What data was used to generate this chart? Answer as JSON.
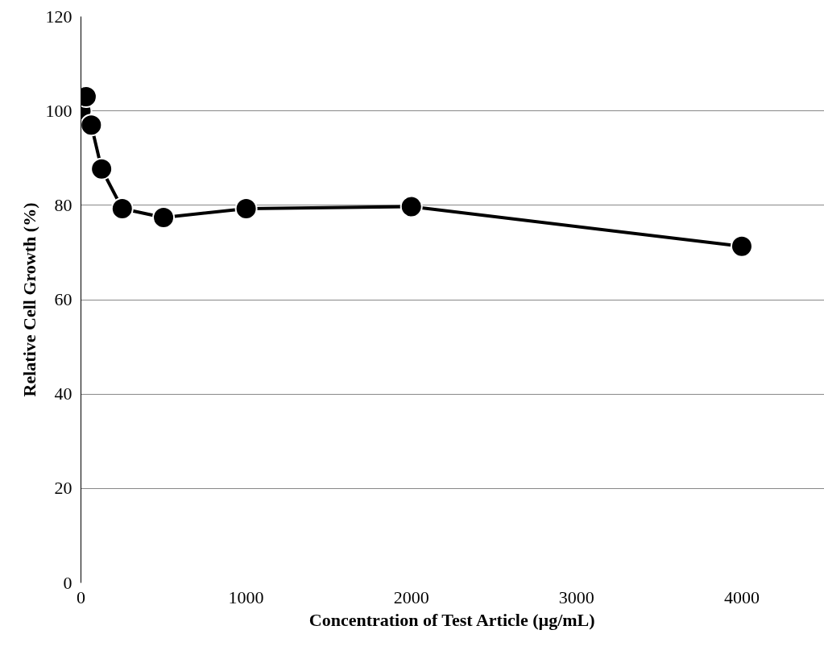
{
  "chart_data": {
    "type": "line",
    "xlabel": "Concentration of Test Article (µg/mL)",
    "ylabel": "Relative Cell Growth (%)",
    "x": [
      0,
      31.25,
      62.5,
      125,
      250,
      500,
      1000,
      2000,
      4000
    ],
    "series": [
      {
        "color": "#000000",
        "values": [
          100,
          103,
          97,
          87.7,
          79.3,
          77.4,
          79.3,
          79.7,
          71.3
        ]
      }
    ],
    "xlim": [
      0,
      4500
    ],
    "xticks": [
      0,
      1000,
      2000,
      3000,
      4000
    ],
    "ylim": [
      0,
      120
    ],
    "yticks": [
      0,
      20,
      40,
      60,
      80,
      100,
      120
    ],
    "grid": "y",
    "marker": "circle",
    "line_style": "solid"
  }
}
